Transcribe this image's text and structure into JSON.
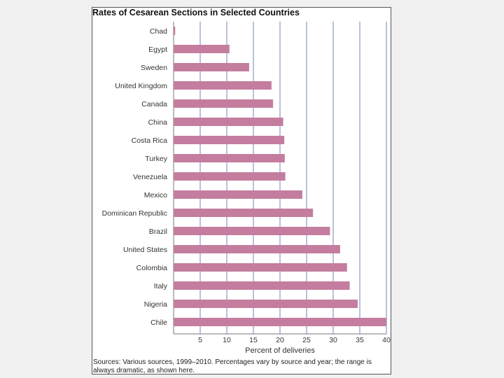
{
  "chart_data": {
    "type": "bar",
    "orientation": "horizontal",
    "title": "Rates of Cesarean Sections in Selected Countries",
    "xlabel": "Percent of deliveries",
    "ylabel": "",
    "xlim": [
      0,
      40
    ],
    "xticks": [
      5,
      10,
      15,
      20,
      25,
      30,
      35,
      40
    ],
    "grid": true,
    "categories": [
      "Chad",
      "Egypt",
      "Sweden",
      "United Kingdom",
      "Canada",
      "China",
      "Costa Rica",
      "Turkey",
      "Venezuela",
      "Mexico",
      "Dominican Republic",
      "Brazil",
      "United States",
      "Colombia",
      "Italy",
      "Nigeria",
      "Chile"
    ],
    "values": [
      0.3,
      10.5,
      14.2,
      18.4,
      18.7,
      20.6,
      20.8,
      20.9,
      21.0,
      24.2,
      26.2,
      29.4,
      31.3,
      32.6,
      33.1,
      34.6,
      40.0
    ],
    "bar_color": "#c47d9e",
    "grid_color": "#a9b3d1",
    "source": "Sources: Various sources, 1999–2010. Percentages vary by source and year; the range is always dramatic, as shown here."
  }
}
